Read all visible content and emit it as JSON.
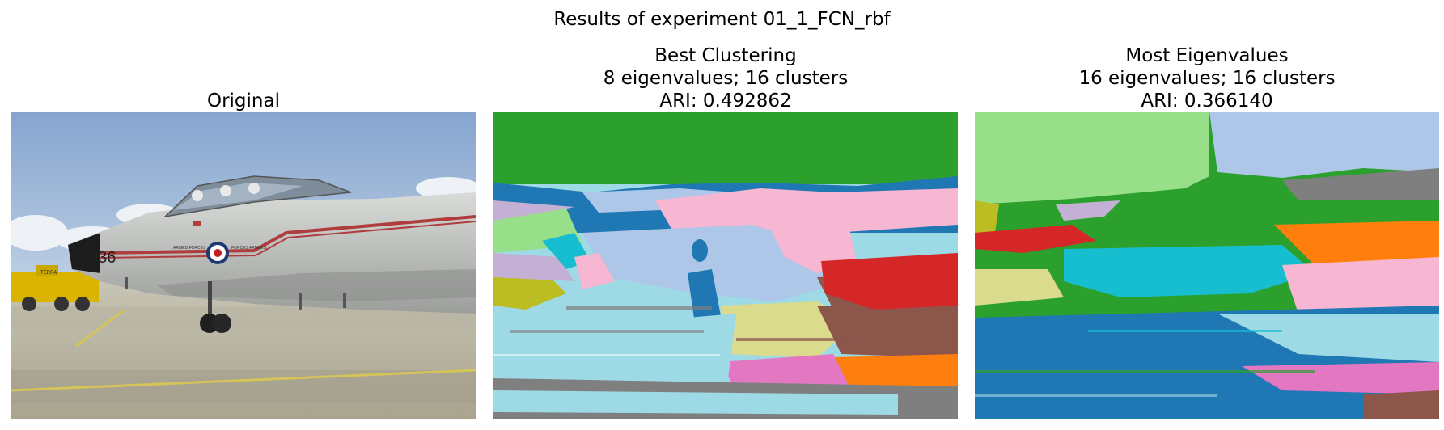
{
  "suptitle": "Results of experiment 01_1_FCN_rbf",
  "panels": [
    {
      "title_lines": [
        "Original"
      ]
    },
    {
      "title_lines": [
        "Best Clustering",
        "8 eigenvalues; 16 clusters",
        "ARI: 0.492862"
      ]
    },
    {
      "title_lines": [
        "Most Eigenvalues",
        "16 eigenvalues; 16 clusters",
        "ARI: 0.366140"
      ]
    }
  ],
  "photo_markings": {
    "aircraft_number": "036",
    "roundel_left_text": "ARMED FORCES",
    "roundel_right_text": "FORCES ARMEES",
    "truck_text": "TERRA"
  },
  "colors": {
    "tab_blue": "#1f77b4",
    "tab_orange": "#ff7f0e",
    "tab_green": "#2ca02c",
    "tab_red": "#d62728",
    "tab_brown": "#8c564b",
    "tab_pink": "#e377c2",
    "tab_gray": "#7f7f7f",
    "tab_olive": "#bcbd22",
    "tab_cyan": "#17becf",
    "light_blue": "#aec7e8",
    "light_green": "#98df8a",
    "light_pink": "#f7b6d2",
    "light_cyan": "#9edae5",
    "light_olive": "#dbdb8d",
    "light_purple": "#c5b0d5"
  }
}
